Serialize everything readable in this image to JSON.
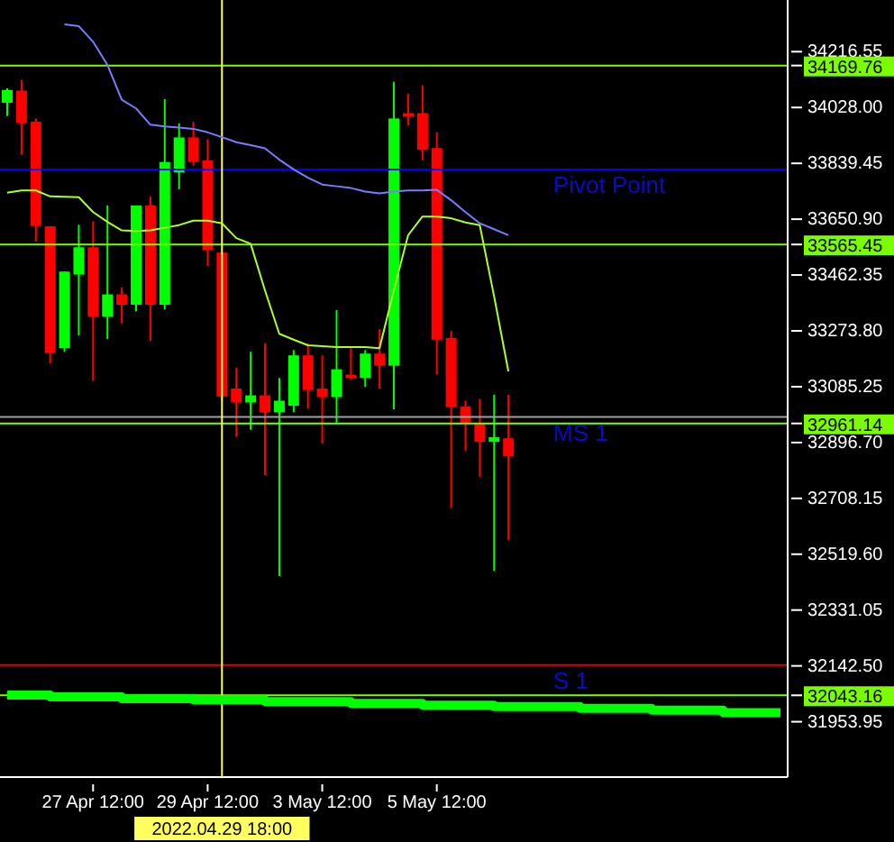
{
  "chart_data": {
    "type": "candlestick",
    "categories": [
      null,
      null,
      null,
      null,
      null,
      null,
      "27 Apr 12:00",
      null,
      null,
      null,
      null,
      null,
      null,
      null,
      "29 Apr 12:00",
      "2022.04.29 18:00",
      null,
      null,
      null,
      null,
      null,
      null,
      "3 May 12:00",
      null,
      null,
      null,
      null,
      null,
      null,
      null,
      "5 May 12:00",
      null,
      null,
      null,
      null,
      null,
      null,
      null,
      null,
      null,
      null,
      null,
      null,
      null,
      null,
      null,
      null,
      null,
      null,
      null,
      null,
      null,
      null,
      null,
      null
    ],
    "ohlc": [
      [
        34044,
        34093,
        33999,
        34087
      ],
      [
        34085,
        34121,
        33868,
        33975
      ],
      [
        33980,
        33991,
        33575,
        33628
      ],
      [
        33627,
        33627,
        33164,
        33199
      ],
      [
        33215,
        33474,
        33203,
        33474
      ],
      [
        33464,
        33632,
        33258,
        33556
      ],
      [
        33556,
        33644,
        33105,
        33322
      ],
      [
        33322,
        33697,
        33246,
        33397
      ],
      [
        33397,
        33421,
        33299,
        33362
      ],
      [
        33362,
        33697,
        33340,
        33697
      ],
      [
        33697,
        33727,
        33240,
        33362
      ],
      [
        33362,
        34056,
        33346,
        33844
      ],
      [
        33809,
        33974,
        33752,
        33927
      ],
      [
        33927,
        33980,
        33832,
        33844
      ],
      [
        33850,
        33921,
        33493,
        33546
      ],
      [
        33538,
        33538,
        33038,
        33052
      ],
      [
        33079,
        33150,
        32916,
        33032
      ],
      [
        33032,
        33203,
        32940,
        33056
      ],
      [
        33056,
        33232,
        32787,
        32999
      ],
      [
        32999,
        33115,
        32446,
        33038
      ],
      [
        33021,
        33209,
        32999,
        33191
      ],
      [
        33191,
        33232,
        33011,
        33074
      ],
      [
        33079,
        33191,
        32893,
        33050
      ],
      [
        33050,
        33344,
        32964,
        33144
      ],
      [
        33126,
        33215,
        33109,
        33115
      ],
      [
        33115,
        33209,
        33085,
        33197
      ],
      [
        33197,
        33279,
        33079,
        33156
      ],
      [
        33156,
        34115,
        33009,
        33991
      ],
      [
        34009,
        34074,
        33968,
        33997
      ],
      [
        34009,
        34103,
        33850,
        33885
      ],
      [
        33891,
        33944,
        33126,
        33244
      ],
      [
        33250,
        33274,
        32675,
        33016
      ],
      [
        33019,
        33038,
        32868,
        32964
      ],
      [
        32960,
        33044,
        32781,
        32899
      ],
      [
        32899,
        33058,
        32463,
        32915
      ],
      [
        32911,
        33058,
        32568,
        32850
      ],
      null,
      null,
      null,
      null,
      null,
      null,
      null,
      null,
      null,
      null,
      null,
      null,
      null,
      null,
      null,
      null,
      null,
      null,
      null
    ],
    "colors": [
      "#00ff00",
      "#ff0000",
      "#ff0000",
      "#ff0000",
      "#00ff00",
      "#00ff00",
      "#ff0000",
      "#00ff00",
      "#ff0000",
      "#00ff00",
      "#ff0000",
      "#00ff00",
      "#00ff00",
      "#ff0000",
      "#ff0000",
      "#ff0000",
      "#ff0000",
      "#00ff00",
      "#ff0000",
      "#00ff00",
      "#00ff00",
      "#ff0000",
      "#ff0000",
      "#00ff00",
      "#ff0000",
      "#00ff00",
      "#ff0000",
      "#00ff00",
      "#ff0000",
      "#ff0000",
      "#ff0000",
      "#ff0000",
      "#ff0000",
      "#ff0000",
      "#00ff00",
      "#ff0000",
      null,
      null,
      null,
      null,
      null,
      null,
      null,
      null,
      null,
      null,
      null,
      null,
      null,
      null,
      null,
      null,
      null,
      null,
      null
    ],
    "series": [
      {
        "type": "line",
        "color": "#7b7bff",
        "values": [
          null,
          null,
          null,
          null,
          34309,
          34303,
          34250,
          34172,
          34054,
          34025,
          33970,
          33964,
          33960,
          33956,
          33944,
          33928,
          33911,
          33901,
          33890,
          33852,
          33819,
          33791,
          33768,
          33762,
          33756,
          33744,
          33738,
          33744,
          33748,
          33748,
          33750,
          33715,
          33675,
          33637,
          33617,
          33597,
          null,
          null,
          null,
          null,
          null,
          null,
          null,
          null,
          null,
          null,
          null,
          null,
          null,
          null,
          null,
          null,
          null,
          null,
          null
        ]
      },
      {
        "type": "line",
        "color": "#aaff2a",
        "values": [
          33740,
          33748,
          33748,
          33728,
          33727,
          33725,
          33675,
          33642,
          33613,
          33611,
          33613,
          33622,
          33631,
          33646,
          33646,
          33637,
          33587,
          33568,
          33411,
          33264,
          33244,
          33225,
          33222,
          33219,
          33219,
          33219,
          33215,
          33411,
          33597,
          33660,
          33660,
          33654,
          33640,
          33631,
          33391,
          33137,
          null,
          null,
          null,
          null,
          null,
          null,
          null,
          null,
          null,
          null,
          null,
          null,
          null,
          null,
          null,
          null,
          null,
          null,
          null
        ]
      },
      {
        "type": "step",
        "color": "#00ff00",
        "values": [
          32044,
          32044,
          32044,
          32038,
          32038,
          32038,
          32038,
          32038,
          32032,
          32032,
          32032,
          32032,
          32032,
          32028,
          32028,
          32028,
          32028,
          32028,
          32022,
          32022,
          32022,
          32022,
          32022,
          32022,
          32016,
          32016,
          32016,
          32016,
          32016,
          32010,
          32010,
          32010,
          32010,
          32010,
          32005,
          32005,
          32005,
          32005,
          32005,
          32005,
          31999,
          31999,
          31999,
          31999,
          31999,
          31993,
          31993,
          31993,
          31993,
          31993,
          31985,
          31985,
          31985,
          31985,
          31985
        ]
      }
    ],
    "ylim": [
      31767,
      34391
    ],
    "yticks": [
      34216.55,
      {
        "value": 34169.76,
        "label": "34169.76"
      },
      {
        "value": 34028,
        "label": "34028.00"
      },
      33839.45,
      {
        "value": 33650.9,
        "label": "33650.90"
      },
      {
        "value": 33565.45,
        "label": "33565.45"
      },
      33462.35,
      {
        "value": 33273.8,
        "label": "33273.80"
      },
      33085.25,
      {
        "value": 32961.14,
        "label": "32961.14"
      },
      {
        "value": 32896.7,
        "label": "32896.70"
      },
      32708.15,
      {
        "value": 32519.6,
        "label": "32519.60"
      },
      32331.05,
      {
        "value": 32142.5,
        "label": "32142.50"
      },
      {
        "value": 32043.16,
        "label": "32043.16"
      },
      31953.95
    ],
    "ref_lines": [
      {
        "axis": "y",
        "value": 34169.76,
        "color": "#7cfc00"
      },
      {
        "axis": "y",
        "value": 33819,
        "label": "Pivot Point",
        "color": "#0000ff"
      },
      {
        "axis": "y",
        "value": 33565.45,
        "color": "#7cfc00"
      },
      {
        "axis": "y",
        "value": 32983,
        "label": "MS 1",
        "color": "#a0a0a0"
      },
      {
        "axis": "y",
        "value": 32961.14,
        "color": "#7cfc00"
      },
      {
        "axis": "y",
        "value": 32145,
        "label": "S 1",
        "color": "#e00000"
      },
      {
        "axis": "y",
        "value": 32043.16,
        "color": "#7cfc00"
      },
      {
        "axis": "x",
        "value": "2022.04.29 18:00",
        "color": "#ffff60"
      }
    ]
  }
}
